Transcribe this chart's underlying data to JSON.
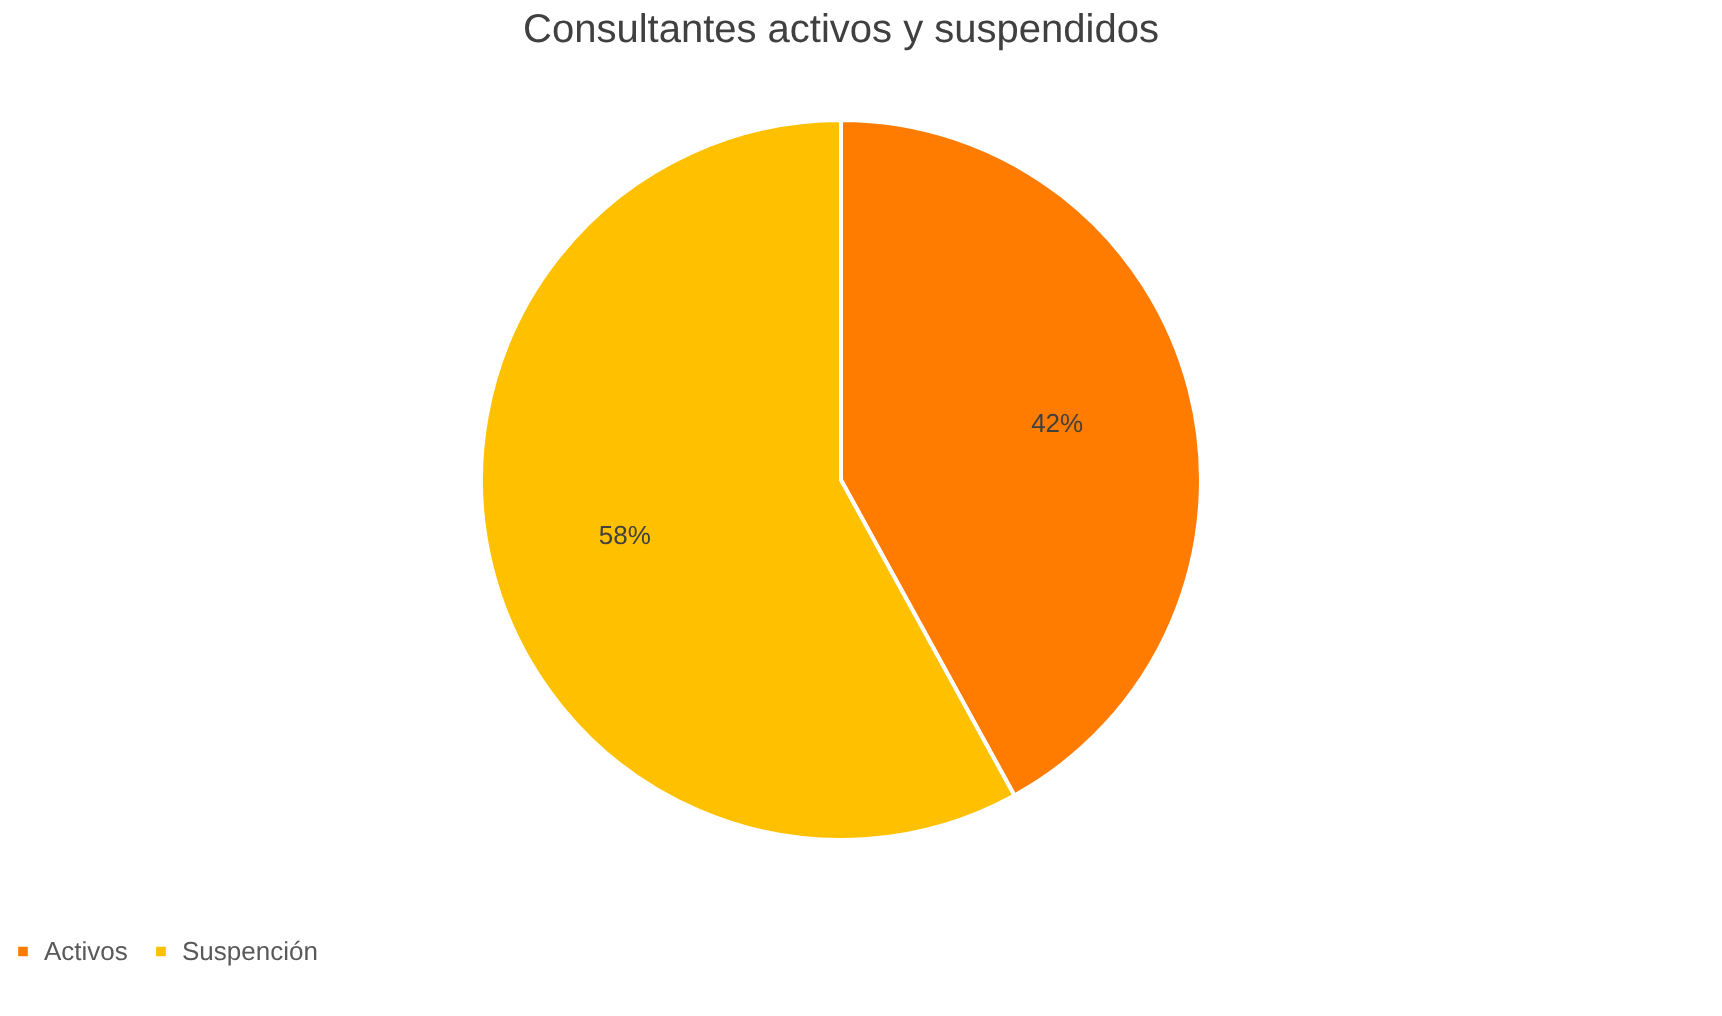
{
  "chart_data": {
    "type": "pie",
    "title": "Consultantes activos y suspendidos",
    "categories": [
      "Activos",
      "Suspención"
    ],
    "values": [
      42,
      58
    ],
    "colors": [
      "#ff7c00",
      "#ffc000"
    ],
    "value_labels": [
      "42%",
      "58%"
    ],
    "legend": "bottom"
  }
}
